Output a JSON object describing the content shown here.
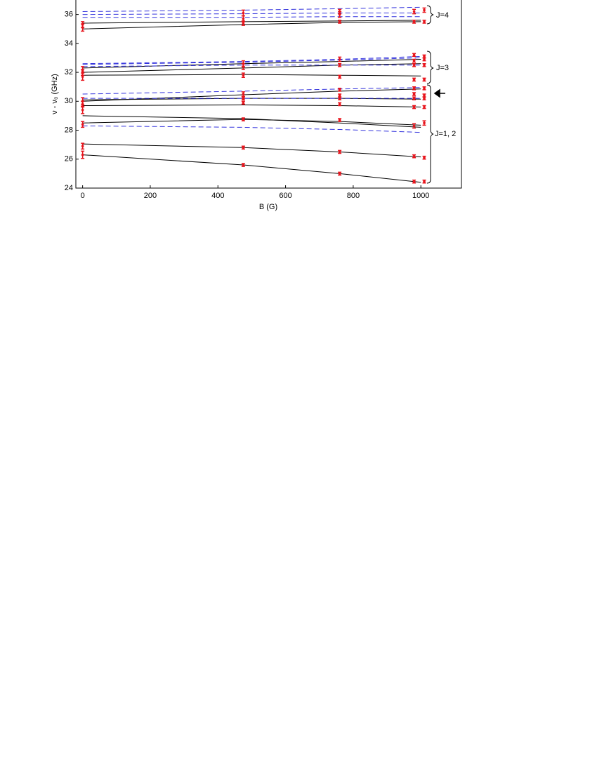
{
  "chart_data": {
    "type": "line",
    "x_label": "B (G)",
    "y_label": "ν - ν₀  (GHz)",
    "xlim": [
      -20,
      1120
    ],
    "ylim": [
      24,
      37
    ],
    "xticks": [
      0,
      200,
      400,
      600,
      800,
      1000
    ],
    "yticks": [
      24,
      26,
      28,
      30,
      32,
      34,
      36
    ],
    "x": [
      0,
      475,
      760,
      1000
    ],
    "lines": [
      {
        "style": "solid",
        "color": "#000000",
        "values": [
          26.3,
          25.6,
          25.0,
          24.4
        ]
      },
      {
        "style": "solid",
        "color": "#000000",
        "values": [
          27.05,
          26.8,
          26.5,
          26.15
        ]
      },
      {
        "style": "solid",
        "color": "#000000",
        "values": [
          28.5,
          28.75,
          28.6,
          28.35
        ]
      },
      {
        "style": "solid",
        "color": "#000000",
        "values": [
          29.0,
          28.8,
          28.5,
          28.2
        ]
      },
      {
        "style": "solid",
        "color": "#000000",
        "values": [
          29.7,
          29.75,
          29.7,
          29.6
        ]
      },
      {
        "style": "solid",
        "color": "#000000",
        "values": [
          30.0,
          30.45,
          30.7,
          30.85
        ]
      },
      {
        "style": "solid",
        "color": "#000000",
        "values": [
          30.1,
          30.2,
          30.2,
          30.15
        ]
      },
      {
        "style": "solid",
        "color": "#000000",
        "values": [
          31.8,
          31.85,
          31.8,
          31.75
        ]
      },
      {
        "style": "solid",
        "color": "#000000",
        "values": [
          32.0,
          32.3,
          32.5,
          32.6
        ]
      },
      {
        "style": "solid",
        "color": "#000000",
        "values": [
          32.3,
          32.6,
          32.75,
          32.9
        ]
      },
      {
        "style": "solid",
        "color": "#000000",
        "values": [
          35.0,
          35.3,
          35.45,
          35.5
        ]
      },
      {
        "style": "solid",
        "color": "#000000",
        "values": [
          35.4,
          35.5,
          35.55,
          35.6
        ]
      },
      {
        "style": "dashed",
        "color": "#3333dd",
        "values": [
          28.3,
          28.2,
          28.05,
          27.85
        ]
      },
      {
        "style": "dashed",
        "color": "#3333dd",
        "values": [
          30.5,
          30.7,
          30.85,
          30.95
        ]
      },
      {
        "style": "dashed",
        "color": "#3333dd",
        "values": [
          30.2,
          30.2,
          30.2,
          30.2
        ]
      },
      {
        "style": "dashed",
        "color": "#3333dd",
        "values": [
          32.4,
          32.5,
          32.5,
          32.5
        ]
      },
      {
        "style": "dashed",
        "color": "#3333dd",
        "values": [
          32.55,
          32.7,
          32.85,
          33.0
        ]
      },
      {
        "style": "dashed",
        "color": "#3333dd",
        "values": [
          32.6,
          32.75,
          32.9,
          33.1
        ]
      },
      {
        "style": "dashed",
        "color": "#3333dd",
        "values": [
          35.8,
          35.8,
          35.85,
          35.85
        ]
      },
      {
        "style": "dashed",
        "color": "#3333dd",
        "values": [
          36.0,
          36.05,
          36.1,
          36.1
        ]
      },
      {
        "style": "dashed",
        "color": "#3333dd",
        "values": [
          36.2,
          36.3,
          36.4,
          36.5
        ]
      }
    ],
    "points": {
      "color": "#e8141c",
      "x": [
        0,
        0,
        0,
        0,
        0,
        0,
        0,
        0,
        0,
        0,
        0,
        475,
        475,
        475,
        475,
        475,
        475,
        475,
        475,
        475,
        475,
        475,
        475,
        760,
        760,
        760,
        760,
        760,
        760,
        760,
        760,
        760,
        760,
        760,
        760,
        760,
        980,
        980,
        980,
        980,
        980,
        980,
        980,
        980,
        980,
        980,
        980,
        980,
        980,
        1010,
        1010,
        1010,
        1010,
        1010,
        1010,
        1010,
        1010,
        1010,
        1010,
        1010,
        1010,
        1010
      ],
      "values": [
        35.1,
        35.3,
        32.1,
        31.7,
        32.0,
        30.0,
        29.8,
        29.4,
        28.4,
        26.9,
        26.3,
        36.1,
        35.7,
        35.4,
        32.6,
        32.4,
        31.8,
        30.5,
        30.2,
        29.9,
        28.75,
        26.8,
        25.6,
        36.2,
        36.0,
        35.5,
        32.9,
        32.5,
        31.7,
        30.8,
        30.4,
        30.2,
        29.8,
        28.7,
        26.5,
        25.0,
        36.2,
        35.5,
        33.2,
        32.8,
        32.5,
        31.5,
        30.9,
        30.5,
        30.2,
        29.6,
        28.3,
        26.2,
        24.45,
        36.3,
        35.5,
        33.1,
        32.9,
        32.5,
        31.5,
        30.9,
        30.4,
        30.2,
        29.6,
        28.5,
        26.1,
        24.45
      ],
      "errors": [
        0.25,
        0.2,
        0.3,
        0.25,
        0.2,
        0.25,
        0.2,
        0.25,
        0.2,
        0.2,
        0.25,
        0.2,
        0.2,
        0.15,
        0.2,
        0.2,
        0.15,
        0.15,
        0.1,
        0.1,
        0.1,
        0.1,
        0.1,
        0.15,
        0.2,
        0.1,
        0.15,
        0.1,
        0.1,
        0.1,
        0.1,
        0.1,
        0.1,
        0.1,
        0.1,
        0.1,
        0.15,
        0.1,
        0.1,
        0.1,
        0.1,
        0.1,
        0.1,
        0.1,
        0.1,
        0.1,
        0.15,
        0.1,
        0.1,
        0.15,
        0.1,
        0.1,
        0.1,
        0.1,
        0.1,
        0.1,
        0.1,
        0.1,
        0.1,
        0.15,
        0.1,
        0.1
      ]
    },
    "annotations": [
      "J=4",
      "J=3",
      "J=1, 2"
    ]
  }
}
